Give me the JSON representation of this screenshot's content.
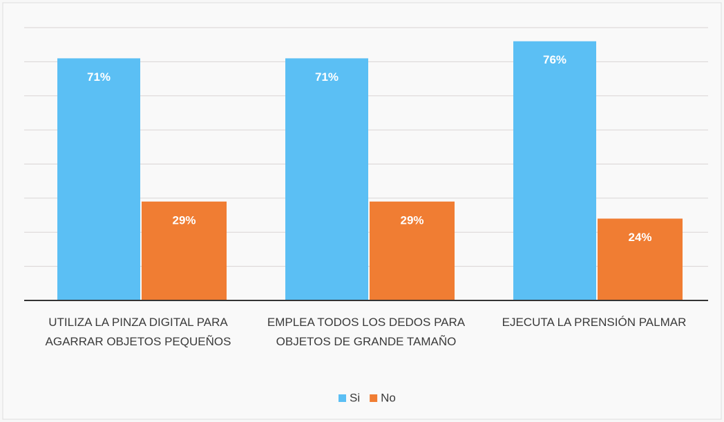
{
  "chart_data": {
    "type": "bar",
    "categories": [
      "UTILIZA LA PINZA DIGITAL PARA AGARRAR OBJETOS PEQUEÑOS",
      "EMPLEA TODOS LOS DEDOS PARA OBJETOS DE GRANDE TAMAÑO",
      "EJECUTA LA PRENSIÓN PALMAR"
    ],
    "series": [
      {
        "name": "Si",
        "color": "#5bbff4",
        "values": [
          71,
          71,
          76
        ],
        "value_labels": [
          "71%",
          "71%",
          "76%"
        ]
      },
      {
        "name": "No",
        "color": "#f07d33",
        "values": [
          29,
          29,
          24
        ],
        "value_labels": [
          "29%",
          "29%",
          "24%"
        ]
      }
    ],
    "ylim": [
      0,
      80
    ],
    "yticks": [
      0,
      10,
      20,
      30,
      40,
      50,
      60,
      70,
      80
    ],
    "grid": true,
    "legend": "bottom"
  }
}
